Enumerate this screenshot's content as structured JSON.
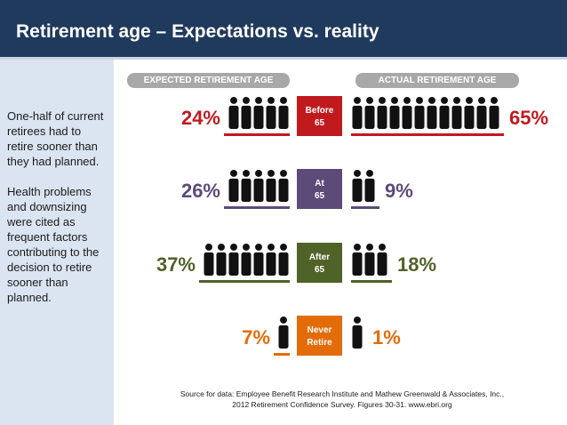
{
  "header": {
    "title": "Retirement age – Expectations vs. reality"
  },
  "sidebar": {
    "paragraph1": "One-half of current retirees had to retire sooner than they had planned.",
    "paragraph2": "Health problems and downsizing were cited as frequent factors contributing to the decision to retire sooner than planned."
  },
  "source": {
    "line1": "Source for data: Employee Benefit Research Institute and Mathew Greenwald & Associates, Inc.,",
    "line2": "2012 Retirement Confidence Survey. Figures 30-31. www.ebri.org"
  },
  "chart_data": {
    "type": "bar",
    "series": [
      {
        "name": "EXPECTED RETIREMENT AGE",
        "values": [
          24,
          26,
          37,
          7
        ]
      },
      {
        "name": "ACTUAL RETIREMENT AGE",
        "values": [
          65,
          9,
          18,
          1
        ]
      }
    ],
    "categories": [
      {
        "line1": "Before",
        "line2": "65"
      },
      {
        "line1": "At",
        "line2": "65"
      },
      {
        "line1": "After",
        "line2": "65"
      },
      {
        "line1": "Never",
        "line2": "Retire"
      }
    ],
    "value_labels": {
      "expected": [
        "24%",
        "26%",
        "37%",
        "7%"
      ],
      "actual": [
        "65%",
        "9%",
        "18%",
        "1%"
      ]
    },
    "colors": [
      "#c01a1f",
      "#5c4b78",
      "#4f6228",
      "#e36c09"
    ]
  }
}
